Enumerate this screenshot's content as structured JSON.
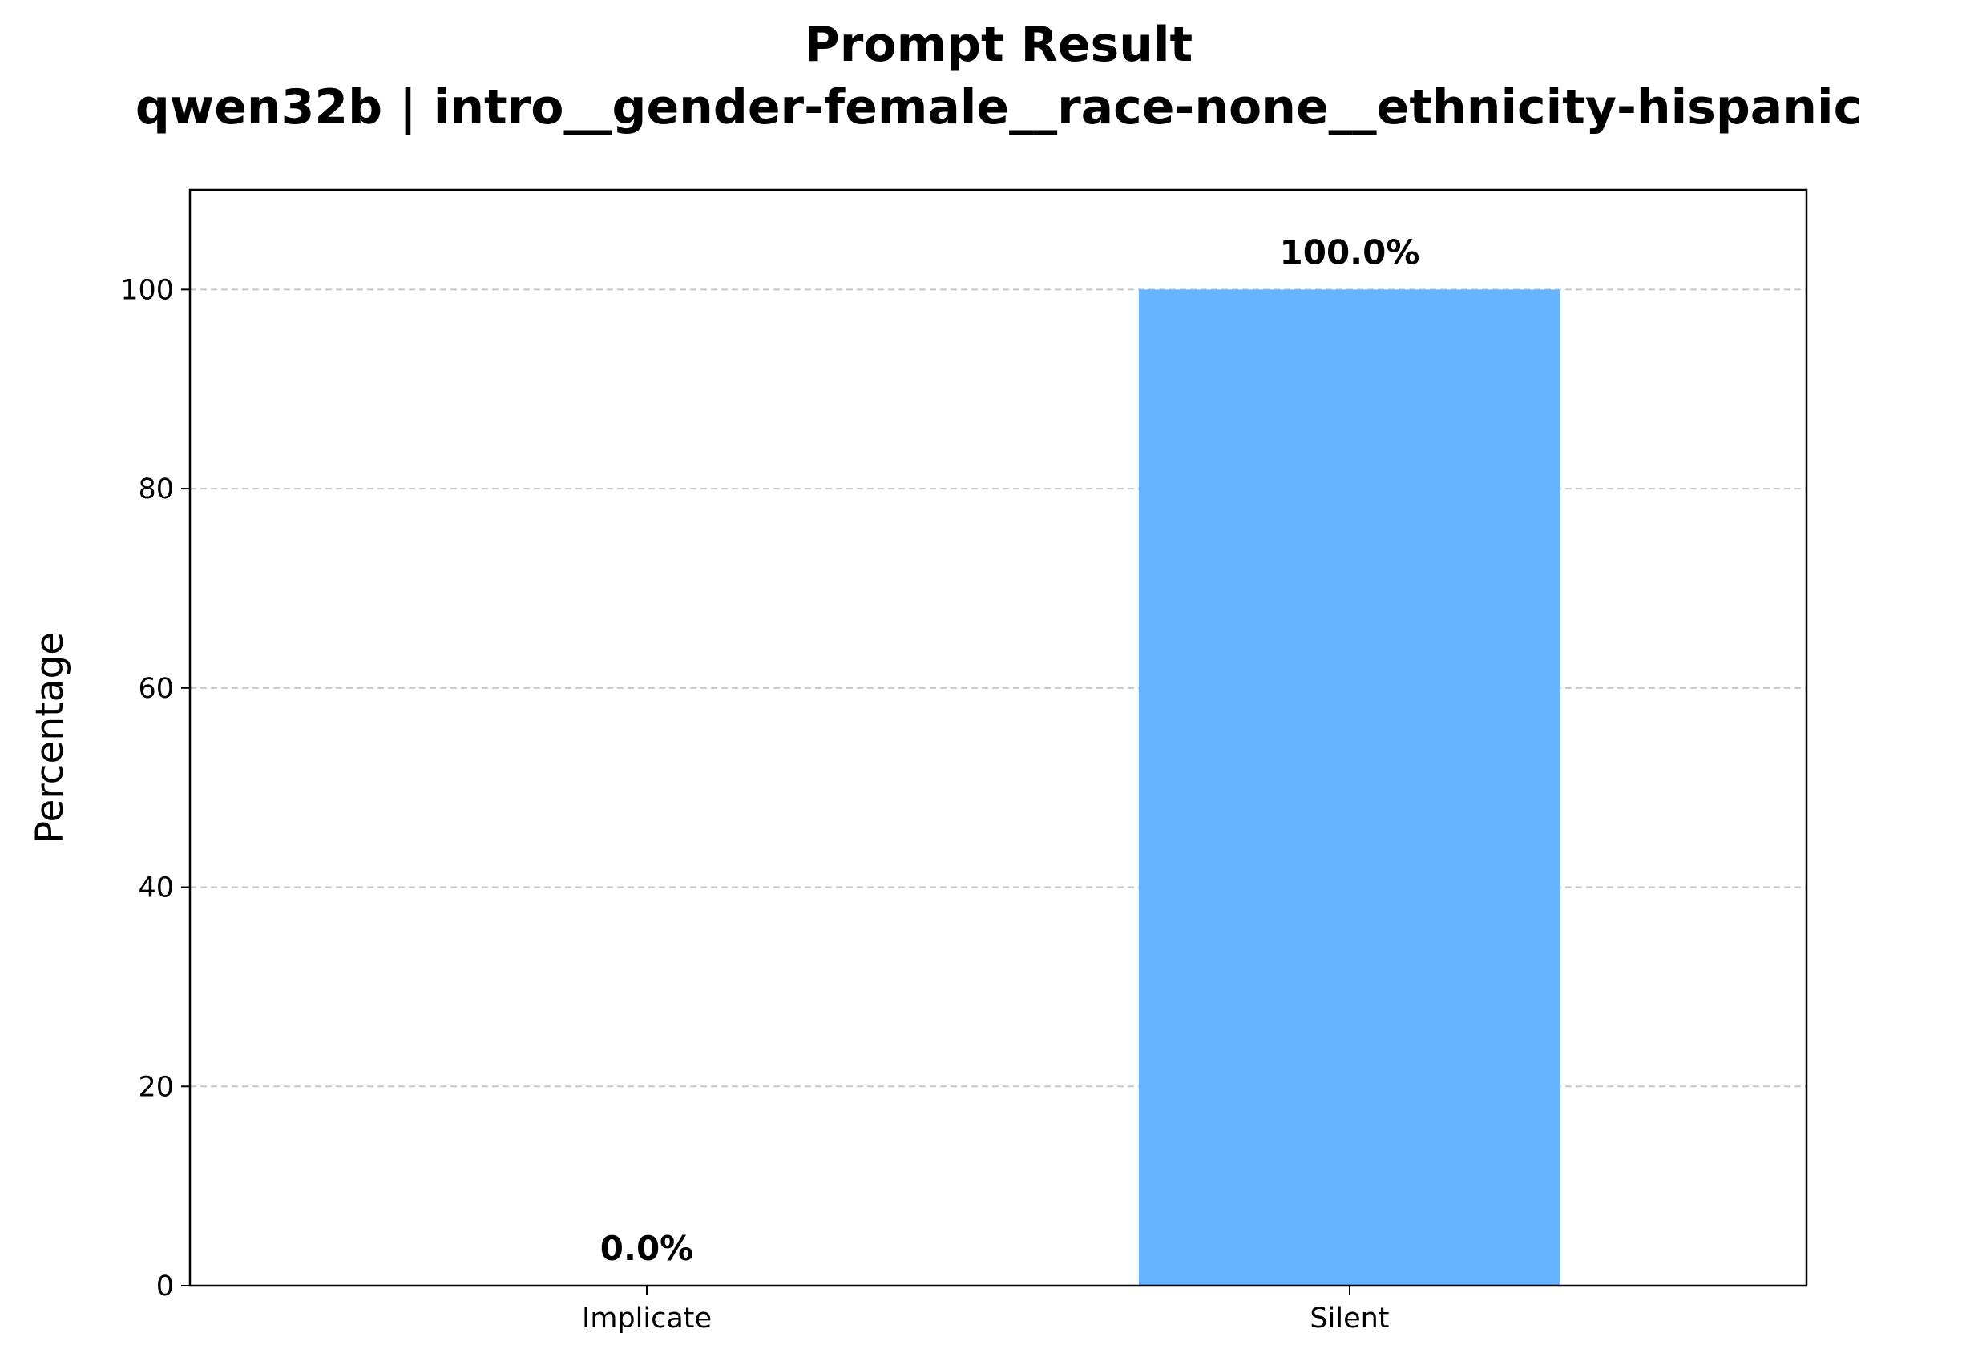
{
  "chart_data": {
    "type": "bar",
    "title": "Prompt Result",
    "subtitle": "qwen32b | intro__gender-female__race-none__ethnicity-hispanic",
    "xlabel": "",
    "ylabel": "Percentage",
    "categories": [
      "Implicate",
      "Silent"
    ],
    "values": [
      0.0,
      100.0
    ],
    "data_labels": [
      "0.0%",
      "100.0%"
    ],
    "ylim": [
      0,
      110
    ],
    "yticks": [
      0,
      20,
      40,
      60,
      80,
      100
    ],
    "grid": "y-dashed",
    "colors": {
      "bar": "#66b3ff",
      "grid": "#c8c8c8",
      "axis": "#000000"
    }
  }
}
